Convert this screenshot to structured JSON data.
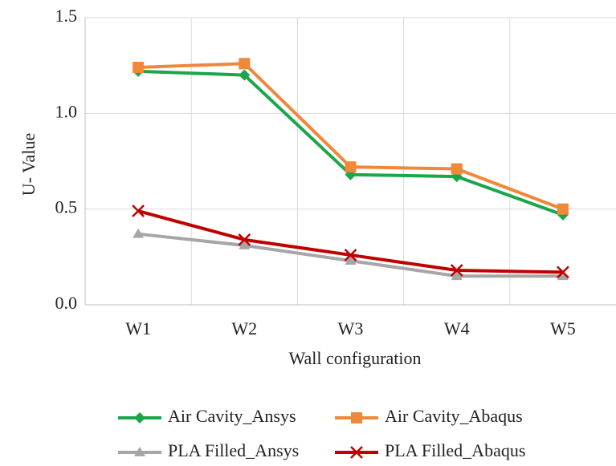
{
  "chart_data": {
    "type": "line",
    "x_label": "Wall configuration",
    "y_label": "U- Value",
    "categories": [
      "W1",
      "W2",
      "W3",
      "W4",
      "W5"
    ],
    "series": [
      {
        "name": "Air Cavity_Ansys",
        "color": "#1aa64a",
        "marker": "diamond",
        "values": [
          1.22,
          1.2,
          0.68,
          0.67,
          0.47
        ]
      },
      {
        "name": "Air Cavity_Abaqus",
        "color": "#f0883a",
        "marker": "square",
        "values": [
          1.24,
          1.26,
          0.72,
          0.71,
          0.5
        ]
      },
      {
        "name": "PLA Filled_Ansys",
        "color": "#a6a6a6",
        "marker": "triangle",
        "values": [
          0.37,
          0.31,
          0.23,
          0.15,
          0.15
        ]
      },
      {
        "name": "PLA Filled_Abaqus",
        "color": "#c00000",
        "marker": "x",
        "values": [
          0.49,
          0.34,
          0.26,
          0.18,
          0.17
        ]
      }
    ],
    "ylim": [
      0,
      1.5
    ],
    "yticks": [
      {
        "value": 0,
        "label": "0.0"
      },
      0.5,
      {
        "value": 1,
        "label": "1.0"
      },
      1.5
    ],
    "grid": true,
    "legend": "bottom"
  }
}
